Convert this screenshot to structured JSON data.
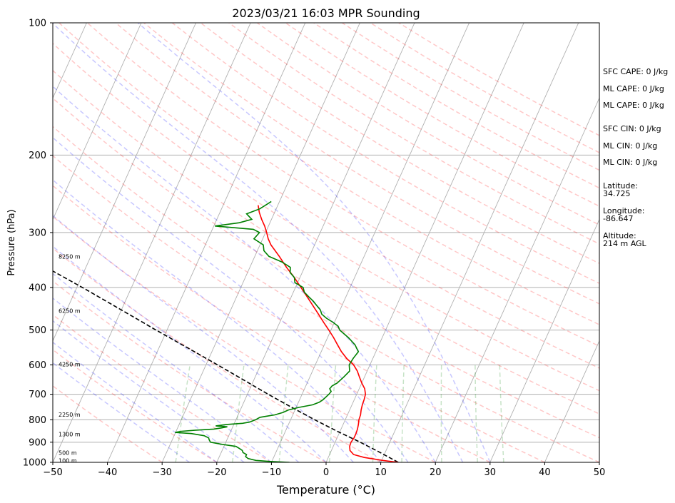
{
  "chart_data": {
    "type": "skew-t",
    "title": "2023/03/21 16:03 MPR Sounding",
    "xlabel": "Temperature (°C)",
    "ylabel": "Pressure (hPa)",
    "xlim": [
      -50,
      50
    ],
    "ylim": [
      1000,
      100
    ],
    "y_scale": "log",
    "x_ticks": [
      -50,
      -40,
      -30,
      -20,
      -10,
      0,
      10,
      20,
      30,
      40,
      50
    ],
    "y_ticks": [
      100,
      200,
      300,
      400,
      500,
      600,
      700,
      800,
      900,
      1000
    ],
    "grid": true,
    "height_labels": [
      {
        "p": 340,
        "text": "8250 m"
      },
      {
        "p": 452,
        "text": "6250 m"
      },
      {
        "p": 598,
        "text": "4250 m"
      },
      {
        "p": 778,
        "text": "2250 m"
      },
      {
        "p": 863,
        "text": "1300 m"
      },
      {
        "p": 950,
        "text": "500 m"
      },
      {
        "p": 990,
        "text": "100 m"
      }
    ],
    "temperature": {
      "color": "#ff0000",
      "points": [
        [
          1000,
          13.2
        ],
        [
          990,
          10.2
        ],
        [
          975,
          6.6
        ],
        [
          960,
          4.4
        ],
        [
          940,
          3.4
        ],
        [
          920,
          3.0
        ],
        [
          900,
          2.9
        ],
        [
          880,
          3.1
        ],
        [
          860,
          3.1
        ],
        [
          840,
          3.0
        ],
        [
          820,
          2.8
        ],
        [
          800,
          2.5
        ],
        [
          780,
          2.4
        ],
        [
          760,
          2.1
        ],
        [
          740,
          1.9
        ],
        [
          720,
          1.8
        ],
        [
          700,
          1.6
        ],
        [
          680,
          1.0
        ],
        [
          660,
          0.0
        ],
        [
          640,
          -0.9
        ],
        [
          620,
          -1.8
        ],
        [
          600,
          -3.0
        ],
        [
          580,
          -4.8
        ],
        [
          560,
          -6.3
        ],
        [
          540,
          -7.6
        ],
        [
          520,
          -8.9
        ],
        [
          500,
          -10.4
        ],
        [
          480,
          -12.0
        ],
        [
          460,
          -13.6
        ],
        [
          440,
          -15.3
        ],
        [
          420,
          -17.1
        ],
        [
          400,
          -19.0
        ],
        [
          380,
          -21.0
        ],
        [
          360,
          -23.3
        ],
        [
          340,
          -25.5
        ],
        [
          320,
          -28.0
        ],
        [
          310,
          -29.0
        ],
        [
          300,
          -29.8
        ],
        [
          290,
          -30.7
        ],
        [
          280,
          -31.8
        ],
        [
          270,
          -32.8
        ],
        [
          260,
          -33.6
        ]
      ]
    },
    "dewpoint": {
      "color": "#008000",
      "points": [
        [
          1000,
          -6.7
        ],
        [
          995,
          -10.5
        ],
        [
          990,
          -13.0
        ],
        [
          980,
          -14.6
        ],
        [
          970,
          -15.2
        ],
        [
          960,
          -15.2
        ],
        [
          950,
          -16.0
        ],
        [
          940,
          -16.3
        ],
        [
          930,
          -17.0
        ],
        [
          920,
          -17.8
        ],
        [
          910,
          -20.5
        ],
        [
          900,
          -22.8
        ],
        [
          890,
          -23.2
        ],
        [
          880,
          -23.5
        ],
        [
          870,
          -24.5
        ],
        [
          860,
          -27.0
        ],
        [
          855,
          -30.1
        ],
        [
          850,
          -29.0
        ],
        [
          845,
          -26.5
        ],
        [
          840,
          -23.3
        ],
        [
          835,
          -22.0
        ],
        [
          830,
          -21.0
        ],
        [
          826,
          -23.2
        ],
        [
          820,
          -21.3
        ],
        [
          815,
          -18.5
        ],
        [
          810,
          -17.3
        ],
        [
          800,
          -16.4
        ],
        [
          790,
          -15.8
        ],
        [
          780,
          -13.3
        ],
        [
          770,
          -12.0
        ],
        [
          760,
          -11.2
        ],
        [
          750,
          -9.5
        ],
        [
          740,
          -7.2
        ],
        [
          730,
          -6.2
        ],
        [
          720,
          -5.7
        ],
        [
          700,
          -5.1
        ],
        [
          690,
          -4.9
        ],
        [
          680,
          -5.4
        ],
        [
          670,
          -5.2
        ],
        [
          660,
          -4.5
        ],
        [
          640,
          -3.8
        ],
        [
          620,
          -3.2
        ],
        [
          600,
          -3.8
        ],
        [
          580,
          -3.6
        ],
        [
          560,
          -3.2
        ],
        [
          550,
          -3.8
        ],
        [
          540,
          -4.4
        ],
        [
          520,
          -6.2
        ],
        [
          500,
          -8.4
        ],
        [
          490,
          -9.0
        ],
        [
          480,
          -10.3
        ],
        [
          470,
          -11.8
        ],
        [
          460,
          -13.0
        ],
        [
          450,
          -13.6
        ],
        [
          440,
          -14.6
        ],
        [
          430,
          -15.6
        ],
        [
          420,
          -16.8
        ],
        [
          410,
          -18.0
        ],
        [
          400,
          -18.6
        ],
        [
          390,
          -20.5
        ],
        [
          380,
          -21.0
        ],
        [
          370,
          -22.2
        ],
        [
          360,
          -22.6
        ],
        [
          350,
          -24.6
        ],
        [
          340,
          -27.4
        ],
        [
          330,
          -28.8
        ],
        [
          320,
          -29.4
        ],
        [
          310,
          -31.6
        ],
        [
          300,
          -31.1
        ],
        [
          295,
          -32.5
        ],
        [
          290,
          -39.8
        ],
        [
          285,
          -35.6
        ],
        [
          280,
          -33.6
        ],
        [
          272,
          -35.0
        ],
        [
          265,
          -33.0
        ],
        [
          255,
          -31.5
        ]
      ]
    },
    "parcel": {
      "color": "#000000",
      "style": "dashed",
      "points": [
        [
          1000,
          13.2
        ],
        [
          950,
          9.1
        ],
        [
          900,
          4.6
        ],
        [
          850,
          -0.5
        ],
        [
          800,
          -5.6
        ],
        [
          750,
          -10.8
        ],
        [
          700,
          -16.2
        ],
        [
          650,
          -21.8
        ],
        [
          600,
          -27.9
        ],
        [
          550,
          -34.6
        ],
        [
          500,
          -42.0
        ],
        [
          450,
          -50.0
        ],
        [
          400,
          -59.0
        ],
        [
          350,
          -69.5
        ],
        [
          300,
          -81.5
        ],
        [
          260,
          -93.0
        ]
      ]
    },
    "dry_adiabat_theta_c": [
      -30,
      -20,
      -10,
      0,
      10,
      20,
      30,
      40,
      50,
      60,
      70,
      80,
      90,
      100,
      110,
      120,
      130,
      140,
      150,
      160,
      170,
      180,
      190,
      200,
      210
    ],
    "moist_adiabat_t0_c": [
      -25,
      -20,
      -15,
      -10,
      -5,
      0,
      5,
      10,
      15,
      20,
      25,
      30
    ],
    "mixing_ratio_gkg": [
      0.4,
      1,
      2,
      4,
      7,
      10,
      16,
      24,
      32
    ],
    "line_colors": {
      "isotherm": "#b0b0b0",
      "dry_adiabat": "#ff0000",
      "moist_adiabat": "#0000ff",
      "mixing_ratio": "#008000"
    }
  },
  "indices": {
    "sfc_cape": "SFC CAPE: 0 J/kg",
    "ml_cape_1": "ML CAPE: 0 J/kg",
    "ml_cape_2": "ML CAPE: 0 J/kg",
    "sfc_cin": "SFC CIN: 0 J/kg",
    "ml_cin_1": "ML CIN: 0 J/kg",
    "ml_cin_2": "ML CIN: 0 J/kg",
    "latitude_label": "Latitude:",
    "latitude_value": "34.725",
    "longitude_label": "Longitude:",
    "longitude_value": "-86.647",
    "altitude_label": "Altitude:",
    "altitude_value": "214 m AGL"
  }
}
